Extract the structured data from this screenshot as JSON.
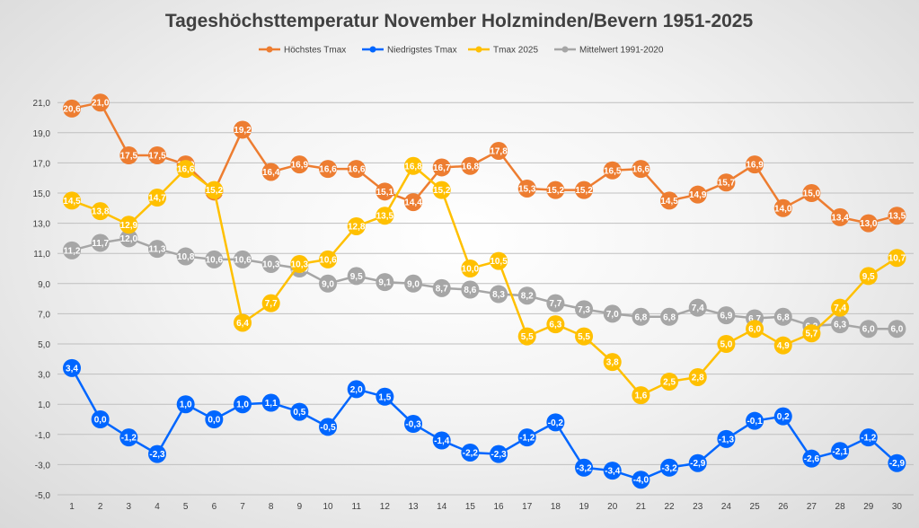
{
  "chart_data": {
    "type": "line",
    "title": "Tageshöchsttemperatur November Holzminden/Bevern 1951-2025",
    "xlabel": "",
    "ylabel": "",
    "ylim": [
      -5,
      22
    ],
    "yticks": [
      "-5,0",
      "-3,0",
      "-1,0",
      "1,0",
      "3,0",
      "5,0",
      "7,0",
      "9,0",
      "11,0",
      "13,0",
      "15,0",
      "17,0",
      "19,0",
      "21,0"
    ],
    "categories": [
      "1",
      "2",
      "3",
      "4",
      "5",
      "6",
      "7",
      "8",
      "9",
      "10",
      "11",
      "12",
      "13",
      "14",
      "15",
      "16",
      "17",
      "18",
      "19",
      "20",
      "21",
      "22",
      "23",
      "24",
      "25",
      "26",
      "27",
      "28",
      "29",
      "30"
    ],
    "legend_position": "top",
    "series": [
      {
        "name": "Höchstes Tmax",
        "color": "#ED7D31",
        "values": [
          20.6,
          21.0,
          17.5,
          17.5,
          16.9,
          15.1,
          19.2,
          16.4,
          16.9,
          16.6,
          16.6,
          15.1,
          14.4,
          16.7,
          16.8,
          17.8,
          15.3,
          15.2,
          15.2,
          16.5,
          16.6,
          14.5,
          14.9,
          15.7,
          16.9,
          14.0,
          15.0,
          13.4,
          13.0,
          13.5
        ],
        "labels": [
          "20,6",
          "21,0",
          "17,5",
          "17,5",
          "16,9",
          "15,1",
          "19,2",
          "16,4",
          "16,9",
          "16,6",
          "16,6",
          "15,1",
          "14,4",
          "16,7",
          "16,8",
          "17,8",
          "15,3",
          "15,2",
          "15,2",
          "16,5",
          "16,6",
          "14,5",
          "14,9",
          "15,7",
          "16,9",
          "14,0",
          "15,0",
          "13,4",
          "13,0",
          "13,5"
        ]
      },
      {
        "name": "Niedrigstes Tmax",
        "color": "#0066FF",
        "values": [
          3.4,
          0.0,
          -1.2,
          -2.3,
          1.0,
          0.0,
          1.0,
          1.1,
          0.5,
          -0.5,
          2.0,
          1.5,
          -0.3,
          -1.4,
          -2.2,
          -2.3,
          -1.2,
          -0.2,
          -3.2,
          -3.4,
          -4.0,
          -3.2,
          -2.9,
          -1.3,
          -0.1,
          0.2,
          -2.6,
          -2.1,
          -1.2,
          -2.9
        ],
        "labels": [
          "3,4",
          "0,0",
          "-1,2",
          "-2,3",
          "1,0",
          "0,0",
          "1,0",
          "1,1",
          "0,5",
          "-0,5",
          "2,0",
          "1,5",
          "-0,3",
          "-1,4",
          "-2,2",
          "-2,3",
          "-1,2",
          "-0,2",
          "-3,2",
          "-3,4",
          "-4,0",
          "-3,2",
          "-2,9",
          "-1,3",
          "-0,1",
          "0,2",
          "-2,6",
          "-2,1",
          "-1,2",
          "-2,9"
        ]
      },
      {
        "name": "Tmax 2025",
        "color": "#FFC000",
        "values": [
          14.5,
          13.8,
          12.9,
          14.7,
          16.6,
          15.2,
          6.4,
          7.7,
          10.3,
          10.6,
          12.8,
          13.5,
          16.8,
          15.2,
          10.0,
          10.5,
          5.5,
          6.3,
          5.5,
          3.8,
          1.6,
          2.5,
          2.8,
          5.0,
          6.0,
          4.9,
          5.7,
          7.4,
          9.5,
          10.7
        ],
        "labels": [
          "14,5",
          "13,8",
          "12,9",
          "14,7",
          "16,6",
          "15,2",
          "6,4",
          "7,7",
          "10,3",
          "10,6",
          "12,8",
          "13,5",
          "16,8",
          "15,2",
          "10,0",
          "10,5",
          "5,5",
          "6,3",
          "5,5",
          "3,8",
          "1,6",
          "2,5",
          "2,8",
          "5,0",
          "6,0",
          "4,9",
          "5,7",
          "7,4",
          "9,5",
          "10,7"
        ]
      },
      {
        "name": "Mittelwert 1991-2020",
        "color": "#A6A6A6",
        "values": [
          11.2,
          11.7,
          12.0,
          11.3,
          10.8,
          10.6,
          10.6,
          10.3,
          10.0,
          9.0,
          9.5,
          9.1,
          9.0,
          8.7,
          8.6,
          8.3,
          8.2,
          7.7,
          7.3,
          7.0,
          6.8,
          6.8,
          7.4,
          6.9,
          6.7,
          6.8,
          6.2,
          6.3,
          6.0,
          6.0
        ],
        "labels": [
          "11,2",
          "11,7",
          "12,0",
          "11,3",
          "10,8",
          "10,6",
          "10,6",
          "10,3",
          "10,0",
          "9,0",
          "9,5",
          "9,1",
          "9,0",
          "8,7",
          "8,6",
          "8,3",
          "8,2",
          "7,7",
          "7,3",
          "7,0",
          "6,8",
          "6,8",
          "7,4",
          "6,9",
          "6,7",
          "6,8",
          "6,2",
          "6,3",
          "6,0",
          "6,0"
        ]
      }
    ]
  }
}
